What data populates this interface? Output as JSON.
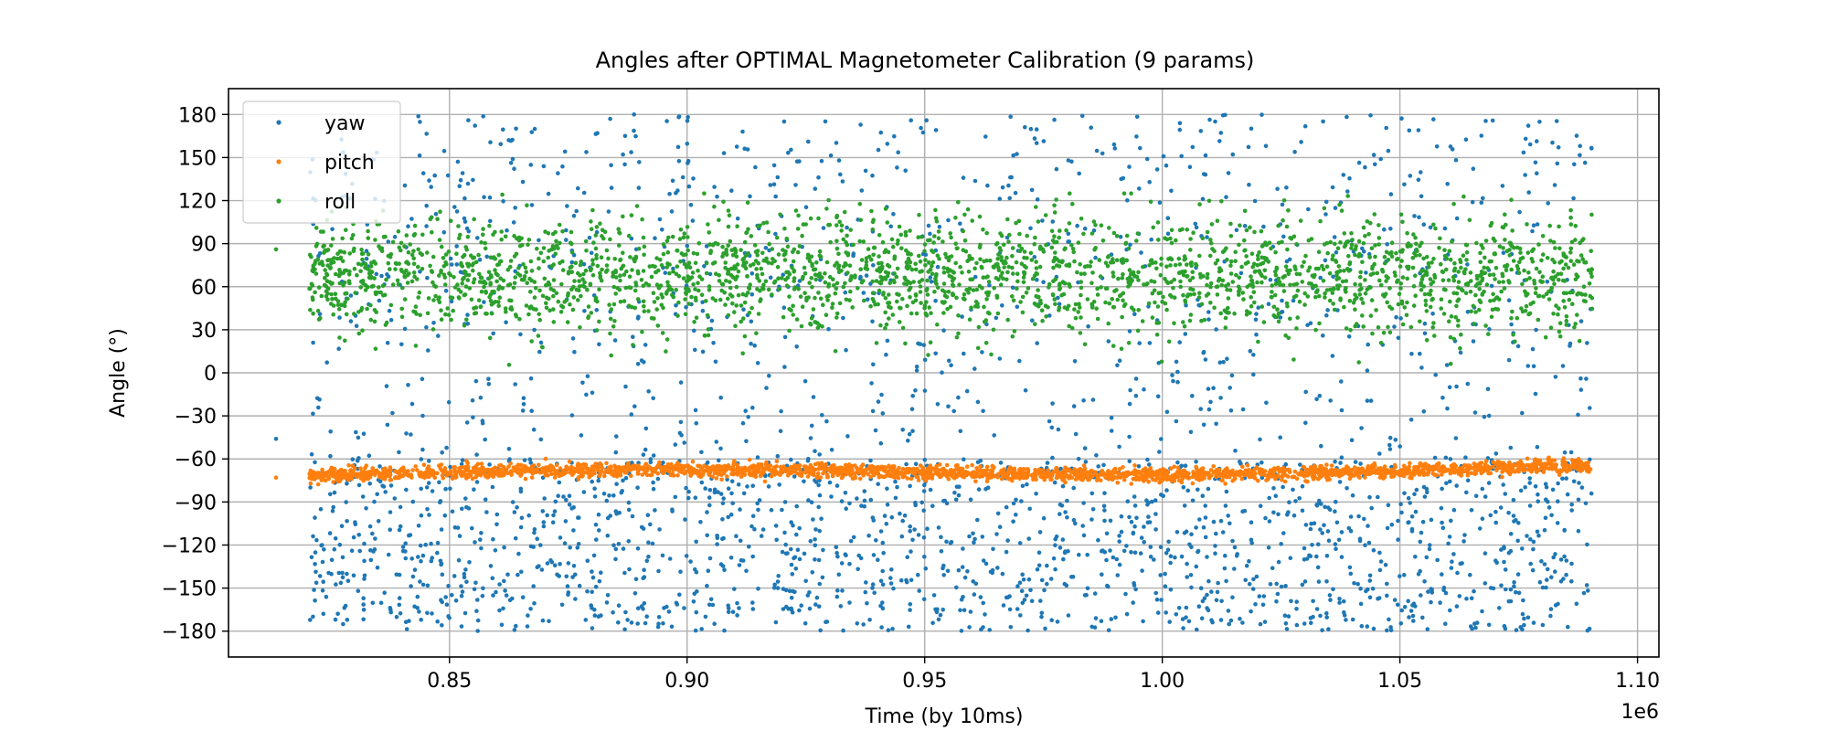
{
  "chart_data": {
    "type": "scatter",
    "title": "Angles after OPTIMAL Magnetometer Calibration (9 params)",
    "xlabel": "Time (by 10ms)",
    "ylabel": "Angle (°)",
    "x_offset_label": "1e6",
    "xlim": [
      0.8035,
      1.1045
    ],
    "ylim": [
      -198,
      198
    ],
    "x_ticks": [
      0.85,
      0.9,
      0.95,
      1.0,
      1.05,
      1.1
    ],
    "x_tick_labels": [
      "0.85",
      "0.90",
      "0.95",
      "1.00",
      "1.05",
      "1.10"
    ],
    "y_ticks": [
      180,
      150,
      120,
      90,
      60,
      30,
      0,
      -30,
      -60,
      -90,
      -120,
      -150,
      -180
    ],
    "y_tick_labels": [
      "180",
      "150",
      "120",
      "90",
      "60",
      "30",
      "0",
      "−30",
      "−60",
      "−90",
      "−120",
      "−150",
      "−180"
    ],
    "grid": true,
    "legend_position": "top-left",
    "x_range_data": [
      0.8205,
      1.0905
    ],
    "outlier_points": {
      "x": 0.8135,
      "yaw": -46,
      "pitch": -73,
      "roll": 86
    },
    "series": [
      {
        "name": "yaw",
        "color": "#1f77b4",
        "description_of_distribution": "spread across full range -180..180, denser below -60",
        "y_min": -180,
        "y_max": 180
      },
      {
        "name": "pitch",
        "color": "#ff7f0e",
        "y_center_start": -72,
        "y_center_end": -66,
        "y_mean": -68,
        "y_spread": 5
      },
      {
        "name": "roll",
        "color": "#2ca02c",
        "y_center": 68,
        "y_min": 5,
        "y_max": 125
      }
    ]
  }
}
